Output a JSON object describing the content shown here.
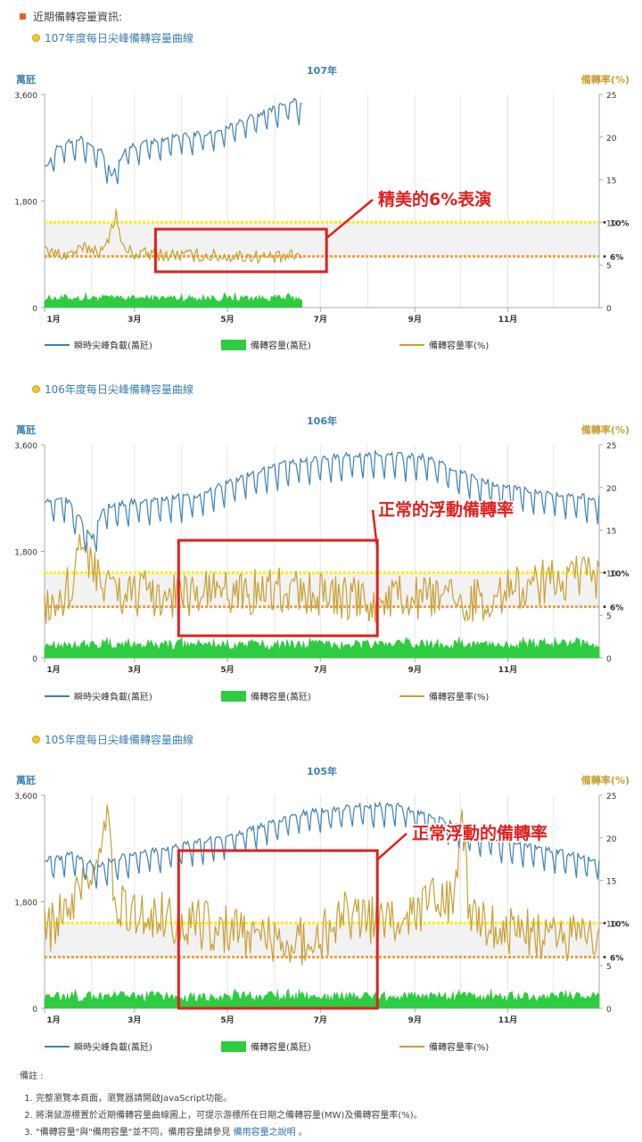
{
  "header": {
    "title": "近期備轉容量資訊:"
  },
  "charts": [
    {
      "subtitle": "107年度每日尖峰備轉容量曲線",
      "chart_title": "107年",
      "annotation": "精美的6%表演"
    },
    {
      "subtitle": "106年度每日尖峰備轉容量曲線",
      "chart_title": "106年",
      "annotation": "正常的浮動備轉率"
    },
    {
      "subtitle": "105年度每日尖峰備轉容量曲線",
      "chart_title": "105年",
      "annotation": "正常浮動的備轉率"
    }
  ],
  "axis": {
    "left_label": "萬瓩",
    "right_label": "備轉率(%)",
    "left_ticks": [
      "0",
      "1,800",
      "3,600"
    ],
    "right_ticks": [
      "0",
      "5",
      "10",
      "15",
      "20",
      "25"
    ],
    "month_ticks": [
      "1月",
      "3月",
      "5月",
      "7月",
      "9月",
      "11月"
    ],
    "ref_10": "10%",
    "ref_6": "6%"
  },
  "legend": {
    "peak": "瞬時尖峰負載(萬瓩)",
    "reserve": "備轉容量(萬瓩)",
    "rate": "備轉容量率(%)"
  },
  "colors": {
    "peak": "#3d80b8",
    "reserve": "#2ecc40",
    "rate": "#c8a035",
    "ref10": "#ffee00",
    "ref6": "#f0a040",
    "box": "#e02020",
    "band": "#f2f2f2"
  },
  "notes": {
    "title": "備註 :",
    "items": [
      "完整瀏覽本頁面，瀏覽器請開啟JavaScript功能。",
      "將滑鼠游標置於近期備轉容量曲線圖上，可提示游標所在日期之備轉容量(MW)及備轉容量率(%)。"
    ],
    "item3_text": "\"備轉容量\"與\"備用容量\"並不同，備用容量請參見",
    "item3_link": "備用容量之說明",
    "item3_end": "。"
  },
  "chart_data": [
    {
      "type": "line",
      "title": "107年",
      "x_unit": "day of year",
      "y_left_range": [
        0,
        3600
      ],
      "y_right_range": [
        0,
        25
      ],
      "days": 170,
      "reference_lines_pct": [
        10,
        6
      ],
      "band_pct": [
        6,
        10
      ],
      "series": [
        {
          "name": "瞬時尖峰負載(萬瓩)",
          "axis": "left",
          "anchors": [
            [
              1,
              2350
            ],
            [
              10,
              2750
            ],
            [
              25,
              2850
            ],
            [
              38,
              2650
            ],
            [
              45,
              2250
            ],
            [
              55,
              2700
            ],
            [
              70,
              2800
            ],
            [
              90,
              2900
            ],
            [
              110,
              2950
            ],
            [
              130,
              3150
            ],
            [
              150,
              3350
            ],
            [
              165,
              3500
            ],
            [
              170,
              3400
            ]
          ],
          "weekly_dip": 320
        },
        {
          "name": "備轉容量(萬瓩)",
          "axis": "left",
          "base": 160,
          "noise": 60
        },
        {
          "name": "備轉容量率(%)",
          "axis": "right",
          "anchors": [
            [
              1,
              6.5
            ],
            [
              15,
              6.2
            ],
            [
              30,
              7
            ],
            [
              40,
              6.5
            ],
            [
              45,
              9.5
            ],
            [
              48,
              11
            ],
            [
              52,
              7
            ],
            [
              60,
              6.3
            ],
            [
              80,
              6.2
            ],
            [
              100,
              6.1
            ],
            [
              120,
              6.0
            ],
            [
              140,
              6.0
            ],
            [
              155,
              5.8
            ],
            [
              170,
              6.2
            ]
          ],
          "noise": 0.8
        }
      ],
      "box_month_range": [
        2.4,
        6.1
      ],
      "box_pct_range": [
        4.2,
        9.2
      ]
    },
    {
      "type": "line",
      "title": "106年",
      "x_unit": "day of year",
      "y_left_range": [
        0,
        3600
      ],
      "y_right_range": [
        0,
        25
      ],
      "days": 365,
      "reference_lines_pct": [
        10,
        6
      ],
      "band_pct": [
        6,
        10
      ],
      "series": [
        {
          "name": "瞬時尖峰負載(萬瓩)",
          "axis": "left",
          "anchors": [
            [
              1,
              2650
            ],
            [
              15,
              2700
            ],
            [
              28,
              2200
            ],
            [
              32,
              2000
            ],
            [
              40,
              2550
            ],
            [
              60,
              2650
            ],
            [
              100,
              2750
            ],
            [
              130,
              3050
            ],
            [
              160,
              3300
            ],
            [
              190,
              3400
            ],
            [
              220,
              3450
            ],
            [
              250,
              3400
            ],
            [
              270,
              3200
            ],
            [
              300,
              2900
            ],
            [
              330,
              2800
            ],
            [
              365,
              2700
            ]
          ],
          "weekly_dip": 400
        },
        {
          "name": "備轉容量(萬瓩)",
          "axis": "left",
          "base": 230,
          "noise": 90
        },
        {
          "name": "備轉容量率(%)",
          "axis": "right",
          "anchors": [
            [
              1,
              5.8
            ],
            [
              15,
              7.5
            ],
            [
              25,
              12.5
            ],
            [
              32,
              12
            ],
            [
              40,
              8
            ],
            [
              60,
              7.5
            ],
            [
              100,
              7.5
            ],
            [
              150,
              8
            ],
            [
              180,
              7.5
            ],
            [
              210,
              6.5
            ],
            [
              240,
              7
            ],
            [
              270,
              6.5
            ],
            [
              300,
              7.5
            ],
            [
              330,
              9
            ],
            [
              365,
              9.5
            ]
          ],
          "noise": 2.8
        }
      ],
      "box_month_range": [
        2.9,
        7.2
      ],
      "box_pct_range": [
        2.6,
        13.8
      ]
    },
    {
      "type": "line",
      "title": "105年",
      "x_unit": "day of year",
      "y_left_range": [
        0,
        3600
      ],
      "y_right_range": [
        0,
        25
      ],
      "days": 365,
      "reference_lines_pct": [
        10,
        6
      ],
      "band_pct": [
        6,
        10
      ],
      "series": [
        {
          "name": "瞬時尖峰負載(萬瓩)",
          "axis": "left",
          "anchors": [
            [
              1,
              2500
            ],
            [
              20,
              2600
            ],
            [
              35,
              2400
            ],
            [
              50,
              2550
            ],
            [
              80,
              2700
            ],
            [
              110,
              2850
            ],
            [
              140,
              3050
            ],
            [
              170,
              3300
            ],
            [
              200,
              3400
            ],
            [
              230,
              3450
            ],
            [
              260,
              3200
            ],
            [
              280,
              3000
            ],
            [
              300,
              2850
            ],
            [
              330,
              2700
            ],
            [
              365,
              2500
            ]
          ],
          "weekly_dip": 350
        },
        {
          "name": "備轉容量(萬瓩)",
          "axis": "left",
          "base": 200,
          "noise": 90
        },
        {
          "name": "備轉容量率(%)",
          "axis": "right",
          "anchors": [
            [
              1,
              9
            ],
            [
              20,
              12
            ],
            [
              35,
              16
            ],
            [
              42,
              22
            ],
            [
              48,
              12
            ],
            [
              70,
              11
            ],
            [
              100,
              10
            ],
            [
              130,
              9
            ],
            [
              160,
              8
            ],
            [
              180,
              8
            ],
            [
              200,
              11
            ],
            [
              230,
              10
            ],
            [
              250,
              12
            ],
            [
              270,
              13
            ],
            [
              275,
              22
            ],
            [
              280,
              10
            ],
            [
              300,
              9
            ],
            [
              330,
              8.5
            ],
            [
              365,
              8
            ]
          ],
          "noise": 3.0
        }
      ],
      "box_month_range": [
        2.9,
        7.2
      ],
      "box_pct_range": [
        0,
        18.5
      ]
    }
  ]
}
